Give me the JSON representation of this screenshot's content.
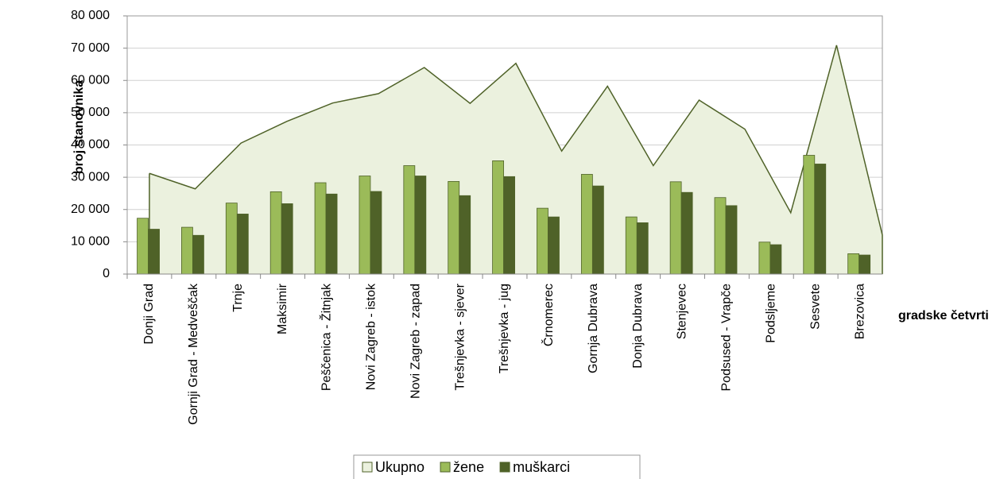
{
  "chart_data": {
    "type": "bar",
    "ylabel": "broj stanovnika",
    "xlabel": "gradske četvrti",
    "categories": [
      "Donji Grad",
      "Gornji Grad - Medveščak",
      "Trnje",
      "Maksimir",
      "Peščenica - Žitnjak",
      "Novi Zagreb - istok",
      "Novi Zagreb - zapad",
      "Trešnjevka - sjever",
      "Trešnjevka - jug",
      "Črnomerec",
      "Gornja Dubrava",
      "Donja Dubrava",
      "Stenjevec",
      "Podsused - Vrapče",
      "Podsljeme",
      "Sesvete",
      "Brezovica"
    ],
    "series": [
      {
        "name": "Ukupno",
        "type": "area",
        "color": "#ebf1de",
        "edge": "#4f6228",
        "values": [
          31200,
          26400,
          40600,
          47300,
          53000,
          55900,
          64000,
          52900,
          65300,
          38100,
          58200,
          33600,
          53900,
          44900,
          19000,
          70900,
          12100
        ]
      },
      {
        "name": "žene",
        "type": "bar",
        "color": "#9bbb59",
        "values": [
          17300,
          14500,
          22000,
          25500,
          28300,
          30400,
          33600,
          28700,
          35100,
          20400,
          30900,
          17700,
          28600,
          23700,
          9900,
          36800,
          6300
        ]
      },
      {
        "name": "muškarci",
        "type": "bar",
        "color": "#4f6228",
        "values": [
          13900,
          12000,
          18600,
          21800,
          24800,
          25600,
          30400,
          24300,
          30200,
          17700,
          27300,
          15900,
          25300,
          21200,
          9100,
          34100,
          5900
        ]
      }
    ],
    "ylim": [
      0,
      80000
    ],
    "yticks": [
      0,
      {
        "value": 10000,
        "label": "10 000"
      },
      {
        "value": 20000,
        "label": "20 000"
      },
      {
        "value": 30000,
        "label": "30 000"
      },
      {
        "value": 40000,
        "label": "40 000"
      },
      {
        "value": 50000,
        "label": "50 000"
      },
      {
        "value": 60000,
        "label": "60 000"
      },
      {
        "value": 70000,
        "label": "70 000"
      },
      {
        "value": 80000,
        "label": "80 000"
      }
    ],
    "grid": true,
    "legend": "bottom"
  }
}
